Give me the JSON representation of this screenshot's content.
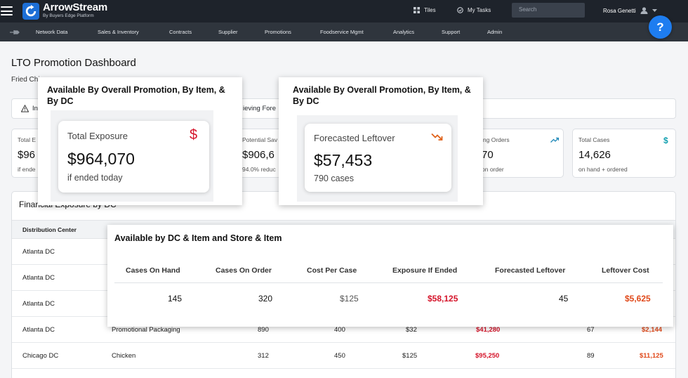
{
  "topbar": {
    "brand_name": "ArrowStream",
    "brand_sub": "By Buyers Edge Platform",
    "tiles_label": "Tiles",
    "tasks_label": "My Tasks",
    "search_placeholder": "Search",
    "user_name": "Rosa Genetti"
  },
  "subnav": {
    "items": [
      "Network Data",
      "Sales & Inventory",
      "Contracts",
      "Supplier",
      "Promotions",
      "Foodservice Mgmt",
      "Analytics",
      "Support",
      "Admin"
    ]
  },
  "help_label": "?",
  "page": {
    "title": "LTO Promotion Dashboard",
    "subtitle": "Fried Chi",
    "alert_left": "In",
    "alert_right": "ieving Fore"
  },
  "kpis": [
    {
      "label": "Total E",
      "value": "$96",
      "foot": "if ende"
    },
    {
      "label": "Potential Sav",
      "value": "$906,6",
      "foot": "94.0% reduc"
    },
    {
      "label": "ing Orders",
      "value": "70",
      "foot": "on order"
    },
    {
      "label": "Total Cases",
      "value": "14,626",
      "foot": "on hand + ordered"
    }
  ],
  "financial": {
    "title": "Financial Exposure by DC",
    "col_dc": "Distribution Center",
    "rows": [
      {
        "dc": "Atlanta DC",
        "item": "",
        "a": "",
        "b": "",
        "c": "",
        "d": "",
        "e": "",
        "f": ""
      },
      {
        "dc": "Atlanta DC",
        "item": "",
        "a": "",
        "b": "",
        "c": "",
        "d": "",
        "e": "",
        "f": ""
      },
      {
        "dc": "Atlanta DC",
        "item": "",
        "a": "",
        "b": "",
        "c": "",
        "d": "",
        "e": "",
        "f": ""
      },
      {
        "dc": "Atlanta DC",
        "item": "Promotional Packaging",
        "a": "890",
        "b": "400",
        "c": "$32",
        "d": "$41,280",
        "e": "67",
        "f": "$2,144"
      },
      {
        "dc": "Chicago DC",
        "item": "Chicken",
        "a": "312",
        "b": "450",
        "c": "$125",
        "d": "$95,250",
        "e": "89",
        "f": "$11,125"
      }
    ]
  },
  "popup1": {
    "title": "Available By Overall Promotion, By Item, & By DC",
    "label": "Total Exposure",
    "value": "$964,070",
    "foot": "if ended today",
    "icon": "dollar-icon",
    "icon_color": "#d5142a"
  },
  "popup2": {
    "title": "Available By Overall Promotion, By Item, & By DC",
    "label": "Forecasted Leftover",
    "value": "$57,453",
    "foot": "790 cases",
    "icon": "trend-down-icon",
    "icon_color": "#e0621a"
  },
  "popup3": {
    "title": "Available by DC & Item and Store & Item",
    "headers": [
      "Cases On Hand",
      "Cases On Order",
      "Cost Per Case",
      "Exposure If Ended",
      "Forecasted Leftover",
      "Leftover Cost"
    ],
    "values": [
      "145",
      "320",
      "$125",
      "$58,125",
      "45",
      "$5,625"
    ]
  },
  "colors": {
    "accent": "#1e7df0",
    "negative": "#d5142a",
    "warning": "#e0491a"
  }
}
